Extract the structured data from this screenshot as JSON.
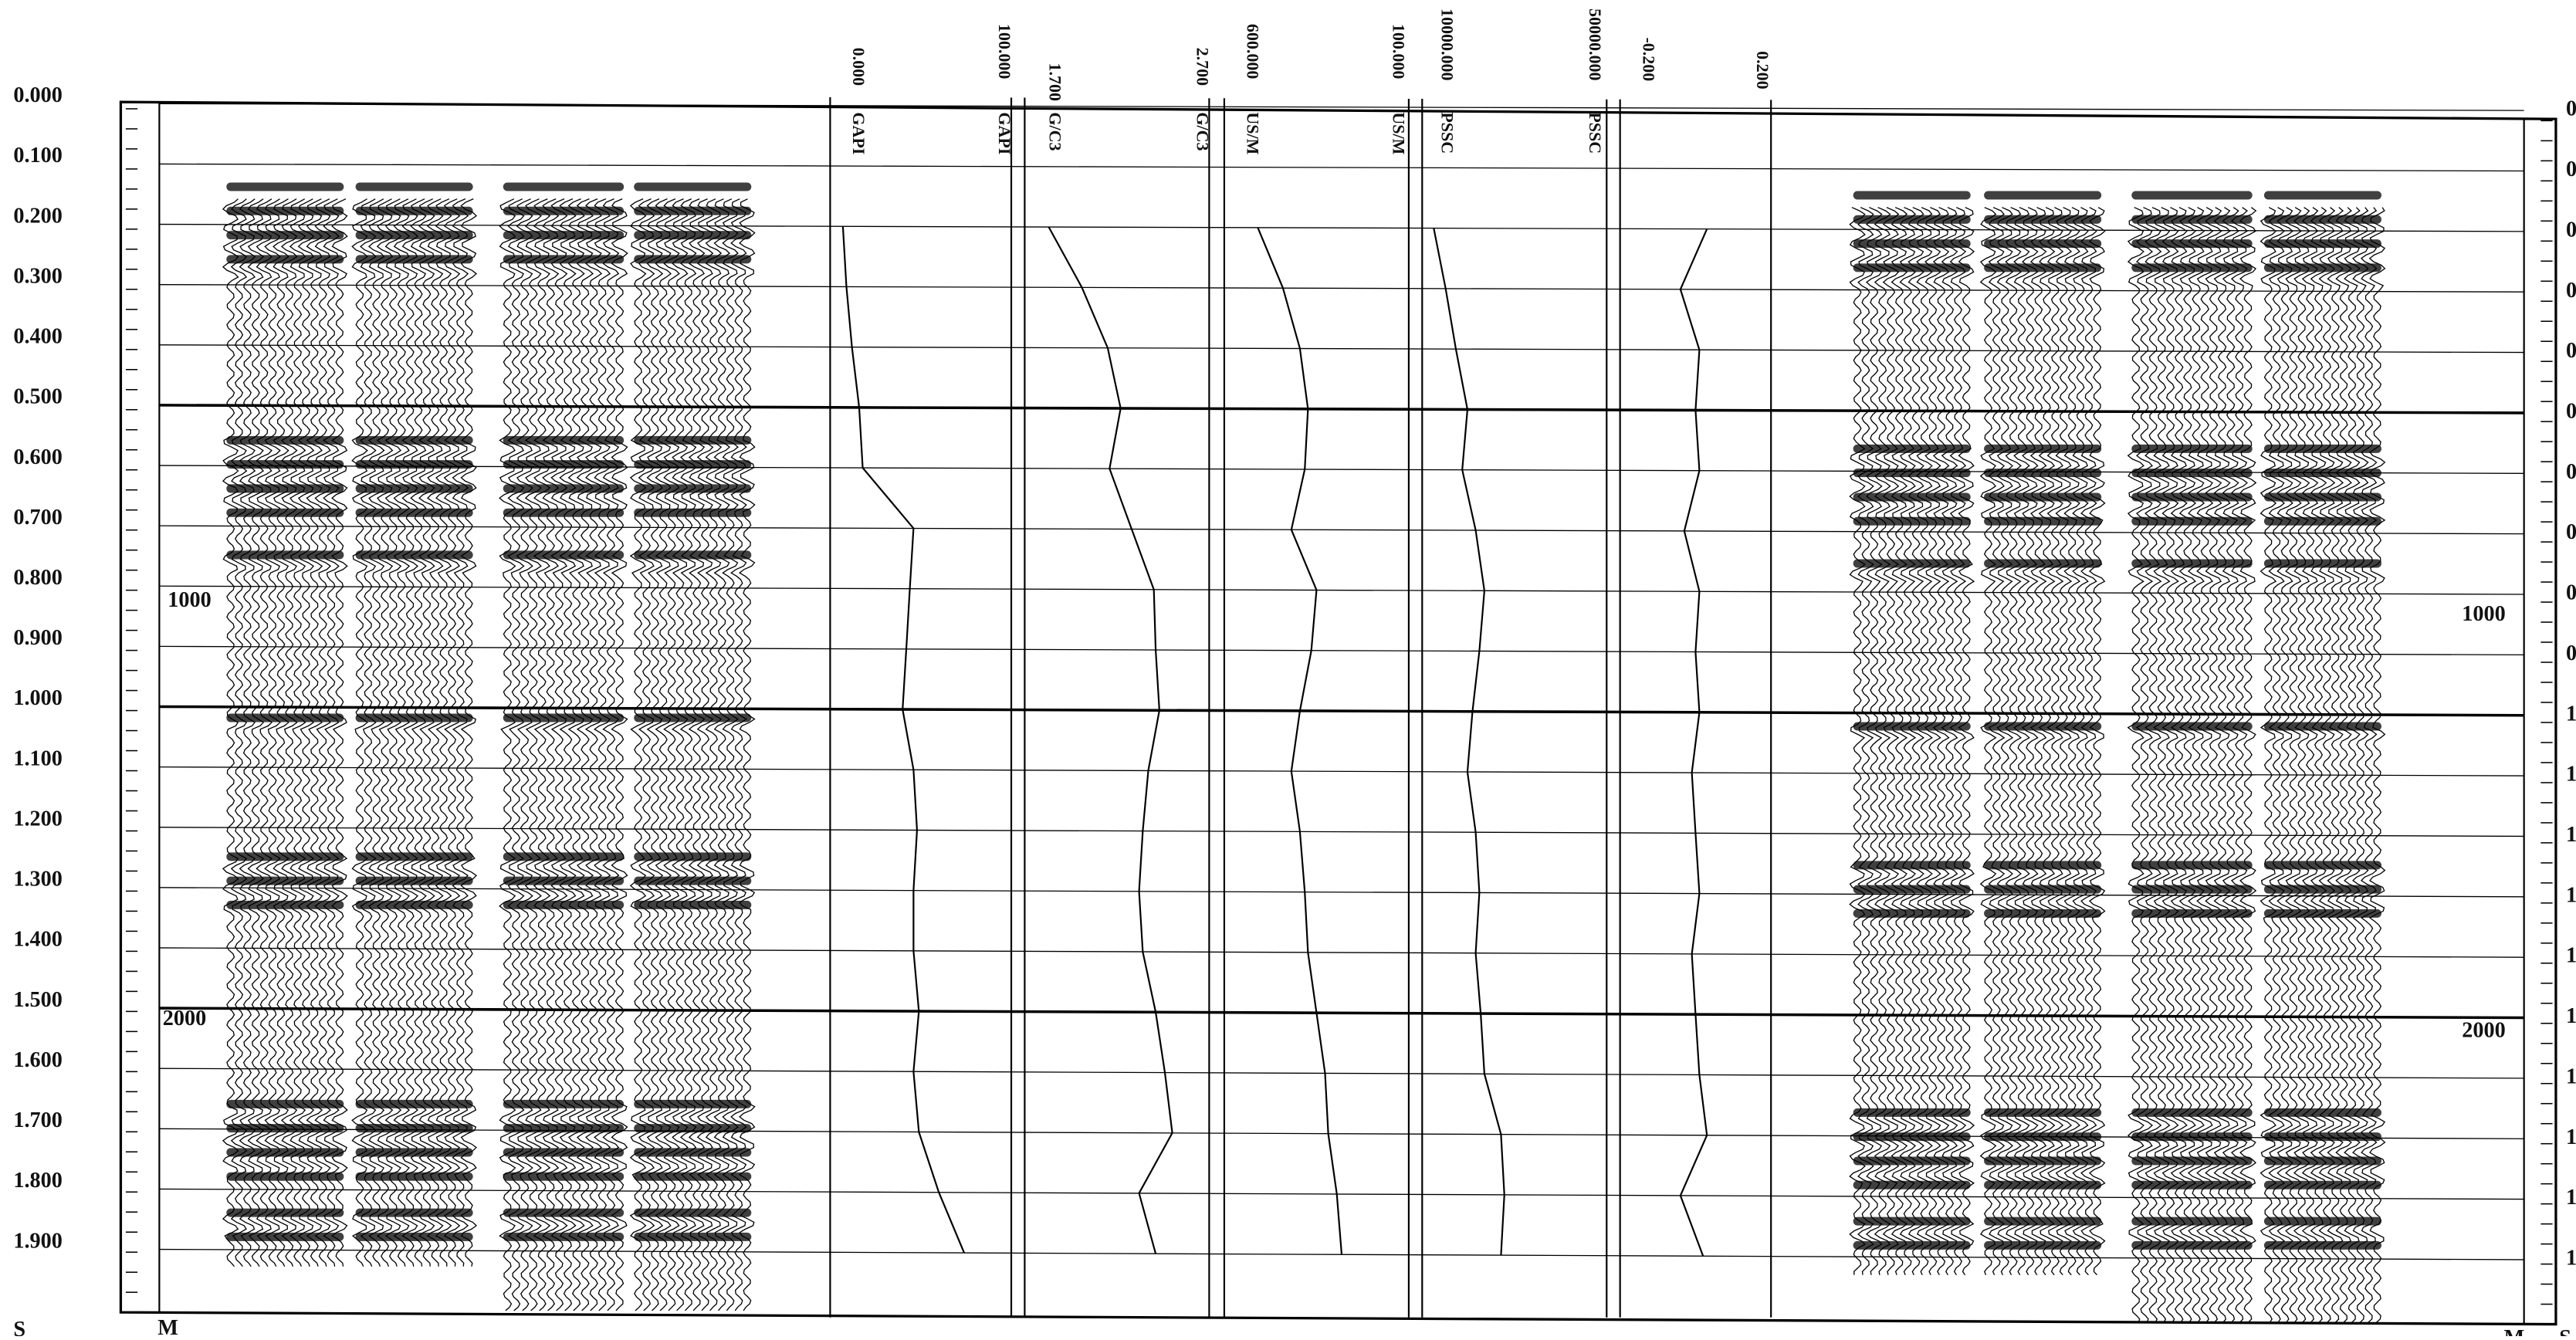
{
  "time_axis": {
    "ticks": [
      {
        "value": 0,
        "label": "0.000"
      },
      {
        "value": 0.1,
        "label": "0.100"
      },
      {
        "value": 0.2,
        "label": "0.200"
      },
      {
        "value": 0.3,
        "label": "0.300"
      },
      {
        "value": 0.4,
        "label": "0.400"
      },
      {
        "value": 0.5,
        "label": "0.500"
      },
      {
        "value": 0.6,
        "label": "0.600"
      },
      {
        "value": 0.7,
        "label": "0.700"
      },
      {
        "value": 0.8,
        "label": "0.800"
      },
      {
        "value": 0.9,
        "label": "0.900"
      },
      {
        "value": 1,
        "label": "1.000"
      },
      {
        "value": 1.1,
        "label": "1.100"
      },
      {
        "value": 1.2,
        "label": "1.200"
      },
      {
        "value": 1.3,
        "label": "1.300"
      },
      {
        "value": 1.4,
        "label": "1.400"
      },
      {
        "value": 1.5,
        "label": "1.500"
      },
      {
        "value": 1.6,
        "label": "1.600"
      },
      {
        "value": 1.7,
        "label": "1.700"
      },
      {
        "value": 1.8,
        "label": "1.800"
      },
      {
        "value": 1.9,
        "label": "1.900"
      }
    ],
    "unit": "S",
    "depth_unit": "M",
    "depth_labels": [
      "1000",
      "2000"
    ]
  },
  "sample_times": [
    0.2,
    0.3,
    0.4,
    0.5,
    0.6,
    0.7,
    0.8,
    0.9,
    1.0,
    1.1,
    1.2,
    1.3,
    1.4,
    1.5,
    1.6,
    1.7,
    1.8,
    1.9
  ],
  "tracks": [
    {
      "scale": [
        {
          "value": 0,
          "label": "0.000"
        },
        {
          "value": 100,
          "label": "100.000"
        }
      ],
      "unit": "GAPI",
      "values": [
        7,
        9,
        12,
        16,
        18,
        46,
        44,
        42,
        40,
        46,
        48,
        46,
        46,
        49,
        46,
        49,
        60,
        74
      ]
    },
    {
      "scale": [
        {
          "value": 1.7,
          "label": "1.700"
        },
        {
          "value": 2.7,
          "label": "2.700"
        }
      ],
      "unit": "G/C3",
      "values": [
        1.83,
        2.01,
        2.15,
        2.22,
        2.16,
        2.28,
        2.4,
        2.41,
        2.43,
        2.37,
        2.34,
        2.32,
        2.34,
        2.41,
        2.46,
        2.5,
        2.32,
        2.41
      ]
    },
    {
      "scale": [
        {
          "value": 600,
          "label": "600.000"
        },
        {
          "value": 100,
          "label": "100.000"
        }
      ],
      "unit": "US/M",
      "values": [
        509,
        441,
        395,
        373,
        382,
        418,
        350,
        364,
        395,
        418,
        395,
        382,
        373,
        350,
        327,
        318,
        295,
        282
      ]
    },
    {
      "scale": [
        {
          "value": 10000,
          "label": "10000.000"
        },
        {
          "value": 50000,
          "label": "50000.000"
        }
      ],
      "unit": "PSSC",
      "values": [
        12500,
        15100,
        17300,
        19800,
        18700,
        21600,
        23500,
        22400,
        20900,
        19800,
        21600,
        22400,
        21600,
        22700,
        23500,
        27100,
        27800,
        27100
      ]
    },
    {
      "scale": [
        {
          "value": -0.2,
          "label": "-0.200"
        },
        {
          "value": 0.2,
          "label": "0.200"
        }
      ],
      "values": [
        0.03,
        -0.04,
        0.01,
        0,
        0.01,
        -0.03,
        0.01,
        0,
        0.01,
        -0.01,
        0,
        0.01,
        -0.01,
        0,
        0.01,
        0.03,
        -0.04,
        0.02
      ]
    }
  ]
}
